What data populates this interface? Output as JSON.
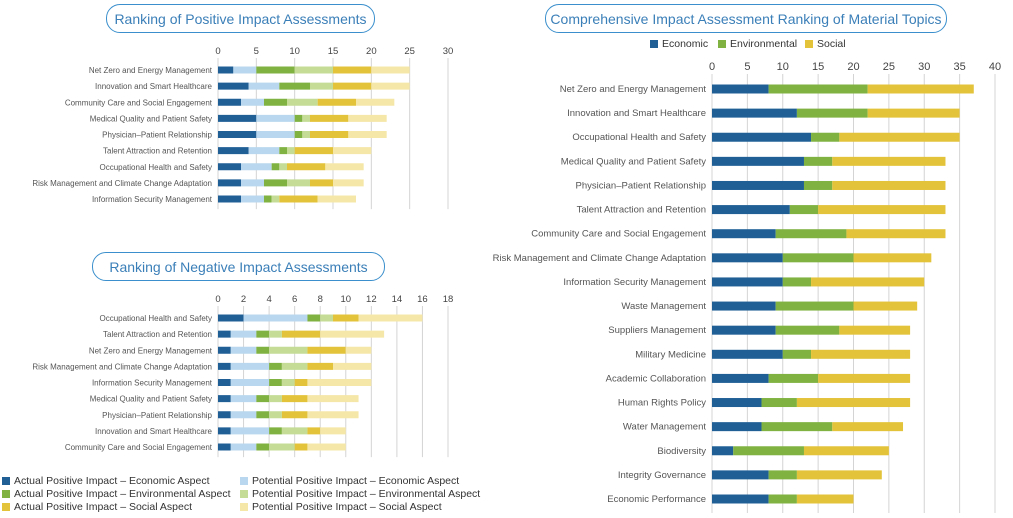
{
  "colors": {
    "actual_economic": "#1f5f96",
    "potential_economic": "#b9d7ee",
    "actual_environmental": "#7fb241",
    "potential_environmental": "#c4dc96",
    "actual_social": "#e3c33a",
    "potential_social": "#f5e7a8",
    "economic": "#1f5f96",
    "environmental": "#7fb241",
    "social": "#e3c33a"
  },
  "legend": [
    "Actual Positive Impact – Economic Aspect",
    "Potential Positive Impact – Economic Aspect",
    "Actual Positive Impact – Environmental Aspect",
    "Potential Positive Impact – Environmental Aspect",
    "Actual Positive Impact – Social Aspect",
    "Potential Positive Impact – Social Aspect"
  ],
  "chart_data": [
    {
      "type": "bar",
      "orientation": "horizontal",
      "stacked": true,
      "title": "Ranking of Positive Impact Assessments",
      "xlim": [
        0,
        30
      ],
      "ticks": [
        "0",
        "5",
        "10",
        "15",
        "20",
        "25",
        "30"
      ],
      "grid": true,
      "categories": [
        "Net Zero and Energy Management",
        "Innovation and Smart Healthcare",
        "Community Care and Social Engagement",
        "Medical Quality and Patient Safety",
        "Physician–Patient Relationship",
        "Talent Attraction and Retention",
        "Occupational Health and Safety",
        "Risk Management and Climate Change Adaptation",
        "Information Security Management"
      ],
      "series": [
        {
          "name": "Actual Positive Impact – Economic Aspect",
          "color_key": "actual_economic",
          "values": [
            2,
            4,
            3,
            5,
            5,
            4,
            3,
            3,
            3
          ]
        },
        {
          "name": "Potential Positive Impact – Economic Aspect",
          "color_key": "potential_economic",
          "values": [
            3,
            4,
            3,
            5,
            5,
            4,
            4,
            3,
            3
          ]
        },
        {
          "name": "Actual Positive Impact – Environmental Aspect",
          "color_key": "actual_environmental",
          "values": [
            5,
            4,
            3,
            1,
            1,
            1,
            1,
            3,
            1
          ]
        },
        {
          "name": "Potential Positive Impact – Environmental Aspect",
          "color_key": "potential_environmental",
          "values": [
            5,
            3,
            4,
            1,
            1,
            1,
            1,
            3,
            1
          ]
        },
        {
          "name": "Actual Positive Impact – Social Aspect",
          "color_key": "actual_social",
          "values": [
            5,
            5,
            5,
            5,
            5,
            5,
            5,
            3,
            5
          ]
        },
        {
          "name": "Potential Positive Impact – Social Aspect",
          "color_key": "potential_social",
          "values": [
            5,
            5,
            5,
            5,
            5,
            5,
            5,
            4,
            5
          ]
        }
      ]
    },
    {
      "type": "bar",
      "orientation": "horizontal",
      "stacked": true,
      "title": "Ranking of Negative Impact Assessments",
      "xlim": [
        0,
        18
      ],
      "ticks": [
        "0",
        "2",
        "4",
        "6",
        "8",
        "10",
        "12",
        "14",
        "16",
        "18"
      ],
      "grid": true,
      "categories": [
        "Occupational Health and Safety",
        "Talent Attraction and Retention",
        "Net Zero and Energy Management",
        "Risk Management and Climate Change Adaptation",
        "Information Security Management",
        "Medical Quality and Patient Safety",
        "Physician–Patient Relationship",
        "Innovation and Smart Healthcare",
        "Community Care and Social Engagement"
      ],
      "series": [
        {
          "color_key": "actual_economic",
          "values": [
            2,
            1,
            1,
            1,
            1,
            1,
            1,
            1,
            1
          ]
        },
        {
          "color_key": "potential_economic",
          "values": [
            5,
            2,
            2,
            3,
            3,
            2,
            2,
            3,
            2
          ]
        },
        {
          "color_key": "actual_environmental",
          "values": [
            1,
            1,
            1,
            1,
            1,
            1,
            1,
            1,
            1
          ]
        },
        {
          "color_key": "potential_environmental",
          "values": [
            1,
            1,
            3,
            2,
            1,
            1,
            1,
            2,
            2
          ]
        },
        {
          "color_key": "actual_social",
          "values": [
            2,
            3,
            3,
            2,
            1,
            2,
            2,
            1,
            1
          ]
        },
        {
          "color_key": "potential_social",
          "values": [
            5,
            5,
            2,
            3,
            5,
            4,
            4,
            2,
            3
          ]
        }
      ]
    },
    {
      "type": "bar",
      "orientation": "horizontal",
      "stacked": true,
      "title": "Comprehensive Impact Assessment Ranking of Material Topics",
      "xlim": [
        0,
        40
      ],
      "ticks": [
        "0",
        "5",
        "10",
        "15",
        "20",
        "25",
        "30",
        "35",
        "40"
      ],
      "grid": true,
      "legend_position": "top",
      "categories": [
        "Net Zero and Energy Management",
        "Innovation and Smart Healthcare",
        "Occupational Health and Safety",
        "Medical Quality and Patient Safety",
        "Physician–Patient Relationship",
        "Talent Attraction and Retention",
        "Community Care and Social Engagement",
        "Risk Management and Climate Change Adaptation",
        "Information Security Management",
        "Waste Management",
        "Suppliers Management",
        "Military Medicine",
        "Academic Collaboration",
        "Human Rights Policy",
        "Water Management",
        "Biodiversity",
        "Integrity Governance",
        "Economic Performance"
      ],
      "series": [
        {
          "name": "Economic",
          "color_key": "economic",
          "values": [
            8,
            12,
            14,
            13,
            13,
            11,
            9,
            10,
            10,
            9,
            9,
            10,
            8,
            7,
            7,
            3,
            8,
            8
          ]
        },
        {
          "name": "Environmental",
          "color_key": "environmental",
          "values": [
            14,
            10,
            4,
            4,
            4,
            4,
            10,
            10,
            4,
            11,
            9,
            4,
            7,
            5,
            10,
            10,
            4,
            4
          ]
        },
        {
          "name": "Social",
          "color_key": "social",
          "values": [
            15,
            13,
            17,
            16,
            16,
            18,
            14,
            11,
            16,
            9,
            10,
            14,
            13,
            16,
            10,
            12,
            12,
            8
          ]
        }
      ]
    }
  ]
}
